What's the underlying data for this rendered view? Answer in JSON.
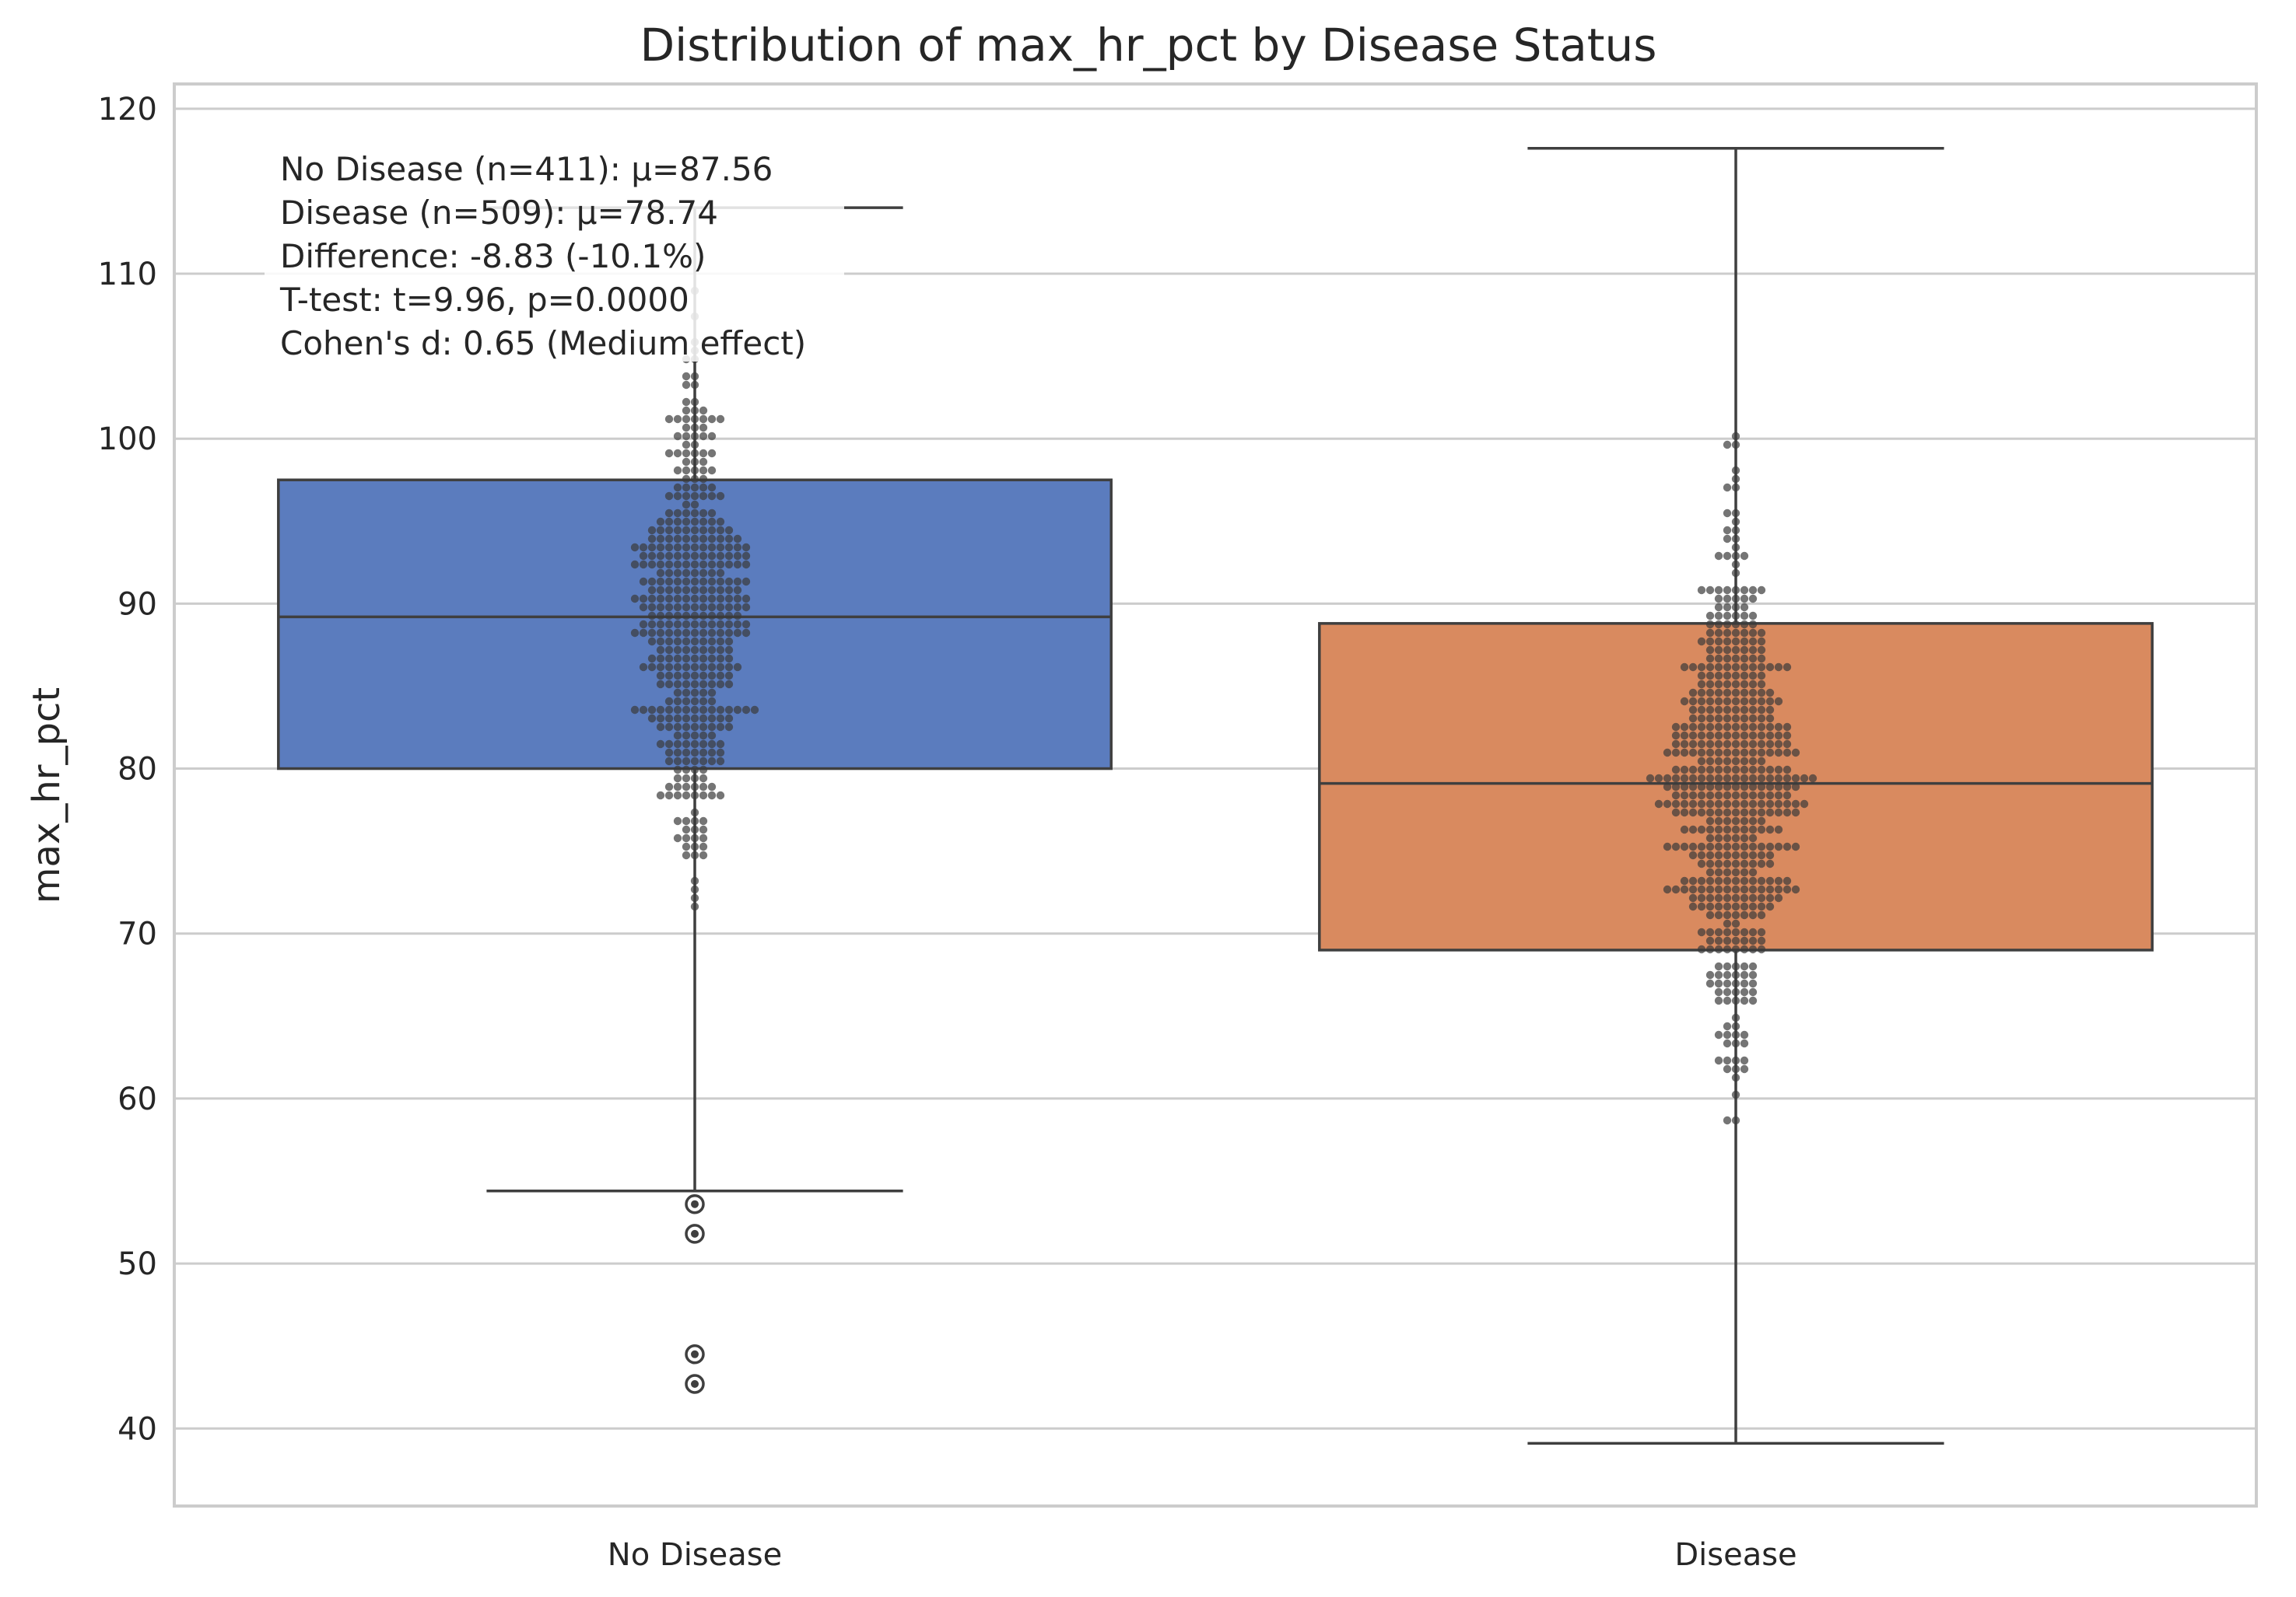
{
  "chart_data": {
    "type": "box",
    "title": "Distribution of max_hr_pct by Disease Status",
    "xlabel": "",
    "ylabel": "max_hr_pct",
    "ylim": [
      35.3,
      121.5
    ],
    "yticks": [
      40,
      50,
      60,
      70,
      80,
      90,
      100,
      110,
      120
    ],
    "categories": [
      "No Disease",
      "Disease"
    ],
    "grid": true,
    "boxes": [
      {
        "category": "No Disease",
        "color": "#5b7cbe",
        "q1": 80.0,
        "median": 89.2,
        "q3": 97.5,
        "whisker_low": 54.4,
        "whisker_high": 114.0,
        "fliers": [
          53.6,
          51.8,
          44.5,
          42.7
        ]
      },
      {
        "category": "Disease",
        "color": "#d98a5f",
        "q1": 69.0,
        "median": 79.1,
        "q3": 88.8,
        "whisker_low": 39.1,
        "whisker_high": 117.6,
        "fliers": []
      }
    ],
    "annotation": [
      "No Disease (n=411): μ=87.56",
      "Disease (n=509): μ=78.74",
      "Difference: -8.83 (-10.1%)",
      "T-test: t=9.96, p=0.0000",
      "Cohen's d: 0.65 (Medium effect)"
    ]
  }
}
